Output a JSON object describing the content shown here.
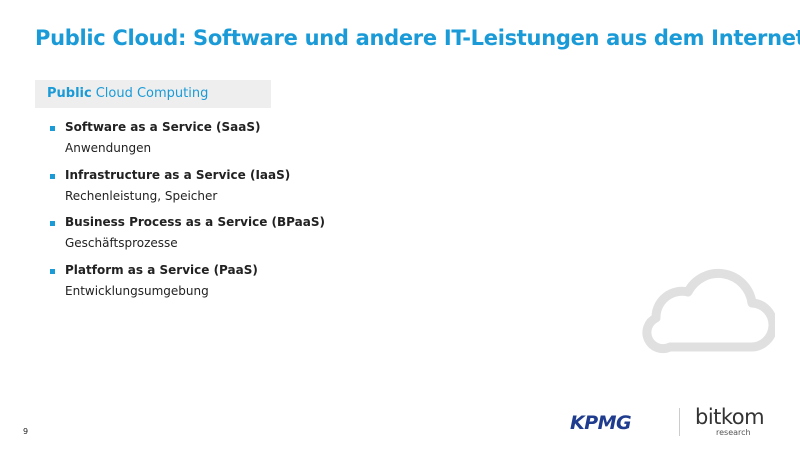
{
  "header": {
    "title": "Public Cloud: Software und andere IT-Leistungen aus dem Internet"
  },
  "box": {
    "bold": "Public",
    "rest": "Cloud Computing"
  },
  "items": [
    {
      "title": "Software as a Service (SaaS)",
      "subtitle": "Anwendungen"
    },
    {
      "title": "Infrastructure as a Service (IaaS)",
      "subtitle": "Rechenleistung, Speicher"
    },
    {
      "title": "Business Process as a Service (BPaaS)",
      "subtitle": "Geschäftsprozesse"
    },
    {
      "title": "Platform as a Service (PaaS)",
      "subtitle": "Entwicklungsumgebung"
    }
  ],
  "footer": {
    "page": "9",
    "logo_left": "KPMG",
    "logo_right": "bitkom",
    "logo_right_sub": "research"
  }
}
